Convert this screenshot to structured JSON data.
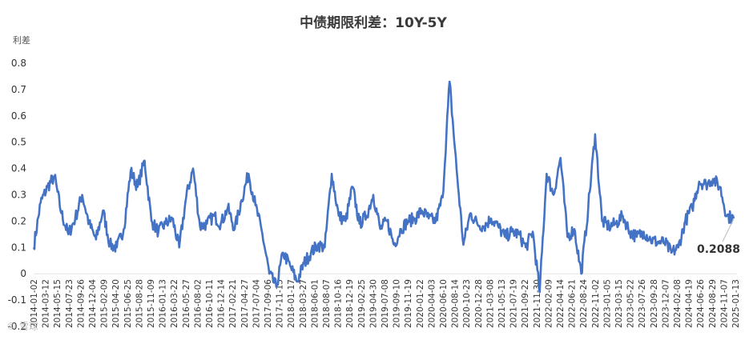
{
  "chart_data": {
    "type": "line",
    "title": "中债期限利差：10Y-5Y",
    "ylabel": "利差",
    "ylim": [
      -0.2,
      0.8
    ],
    "yticks": [
      "-0.2",
      "-0.1",
      "0",
      "0.1",
      "0.2",
      "0.3",
      "0.4",
      "0.5",
      "0.6",
      "0.7",
      "0.8"
    ],
    "grid": "none",
    "color": "#4472c4",
    "xtick_labels": [
      "2014-01-02",
      "2014-03-12",
      "2014-05-15",
      "2014-07-23",
      "2014-09-26",
      "2014-12-04",
      "2015-02-09",
      "2015-04-20",
      "2015-06-25",
      "2015-08-28",
      "2015-11-09",
      "2016-01-13",
      "2016-03-22",
      "2016-05-27",
      "2016-08-02",
      "2016-10-11",
      "2016-12-14",
      "2017-02-21",
      "2017-04-27",
      "2017-07-04",
      "2017-09-06",
      "2017-11-15",
      "2018-01-17",
      "2018-03-27",
      "2018-06-01",
      "2018-08-07",
      "2018-10-16",
      "2018-12-19",
      "2019-02-25",
      "2019-04-30",
      "2019-07-08",
      "2019-09-10",
      "2019-11-19",
      "2020-01-22",
      "2020-04-03",
      "2020-06-10",
      "2020-08-14",
      "2020-10-23",
      "2020-12-28",
      "2021-03-08",
      "2021-05-13",
      "2021-07-19",
      "2021-09-22",
      "2021-11-30",
      "2022-02-09",
      "2022-04-14",
      "2022-06-21",
      "2022-08-24",
      "2022-11-02",
      "2023-01-05",
      "2023-03-15",
      "2023-05-22",
      "2023-07-26",
      "2023-09-28",
      "2023-12-07",
      "2024-02-08",
      "2024-04-19",
      "2024-06-26",
      "2024-08-29",
      "2024-11-07",
      "2025-01-13"
    ],
    "series": [
      {
        "values": [
          0.1,
          0.27,
          0.33,
          0.37,
          0.23,
          0.15,
          0.21,
          0.3,
          0.19,
          0.13,
          0.24,
          0.11,
          0.1,
          0.17,
          0.39,
          0.33,
          0.43,
          0.2,
          0.16,
          0.19,
          0.21,
          0.1,
          0.29,
          0.4,
          0.18,
          0.19,
          0.22,
          0.19,
          0.25,
          0.17,
          0.28,
          0.38,
          0.26,
          0.15,
          0.0,
          -0.05,
          0.08,
          0.03,
          -0.03,
          0.04,
          0.08,
          0.11,
          0.1,
          0.38,
          0.22,
          0.2,
          0.33,
          0.19,
          0.22,
          0.3,
          0.17,
          0.2,
          0.11,
          0.17,
          0.2,
          0.21,
          0.24,
          0.21,
          0.2,
          0.29,
          0.73,
          0.4,
          0.11,
          0.23,
          0.19,
          0.18,
          0.21,
          0.18,
          0.14,
          0.16,
          0.15,
          0.1,
          0.16,
          -0.07,
          0.38,
          0.3,
          0.44,
          0.14,
          0.17,
          0.0,
          0.25,
          0.53,
          0.2,
          0.18,
          0.19,
          0.22,
          0.16,
          0.14,
          0.16,
          0.13,
          0.12,
          0.12,
          0.08,
          0.1,
          0.2,
          0.25,
          0.35,
          0.34,
          0.36,
          0.33,
          0.22,
          0.21
        ]
      }
    ],
    "annotation": {
      "text": "0.2088",
      "value": 0.2088
    },
    "watermark": "© 雪球"
  }
}
